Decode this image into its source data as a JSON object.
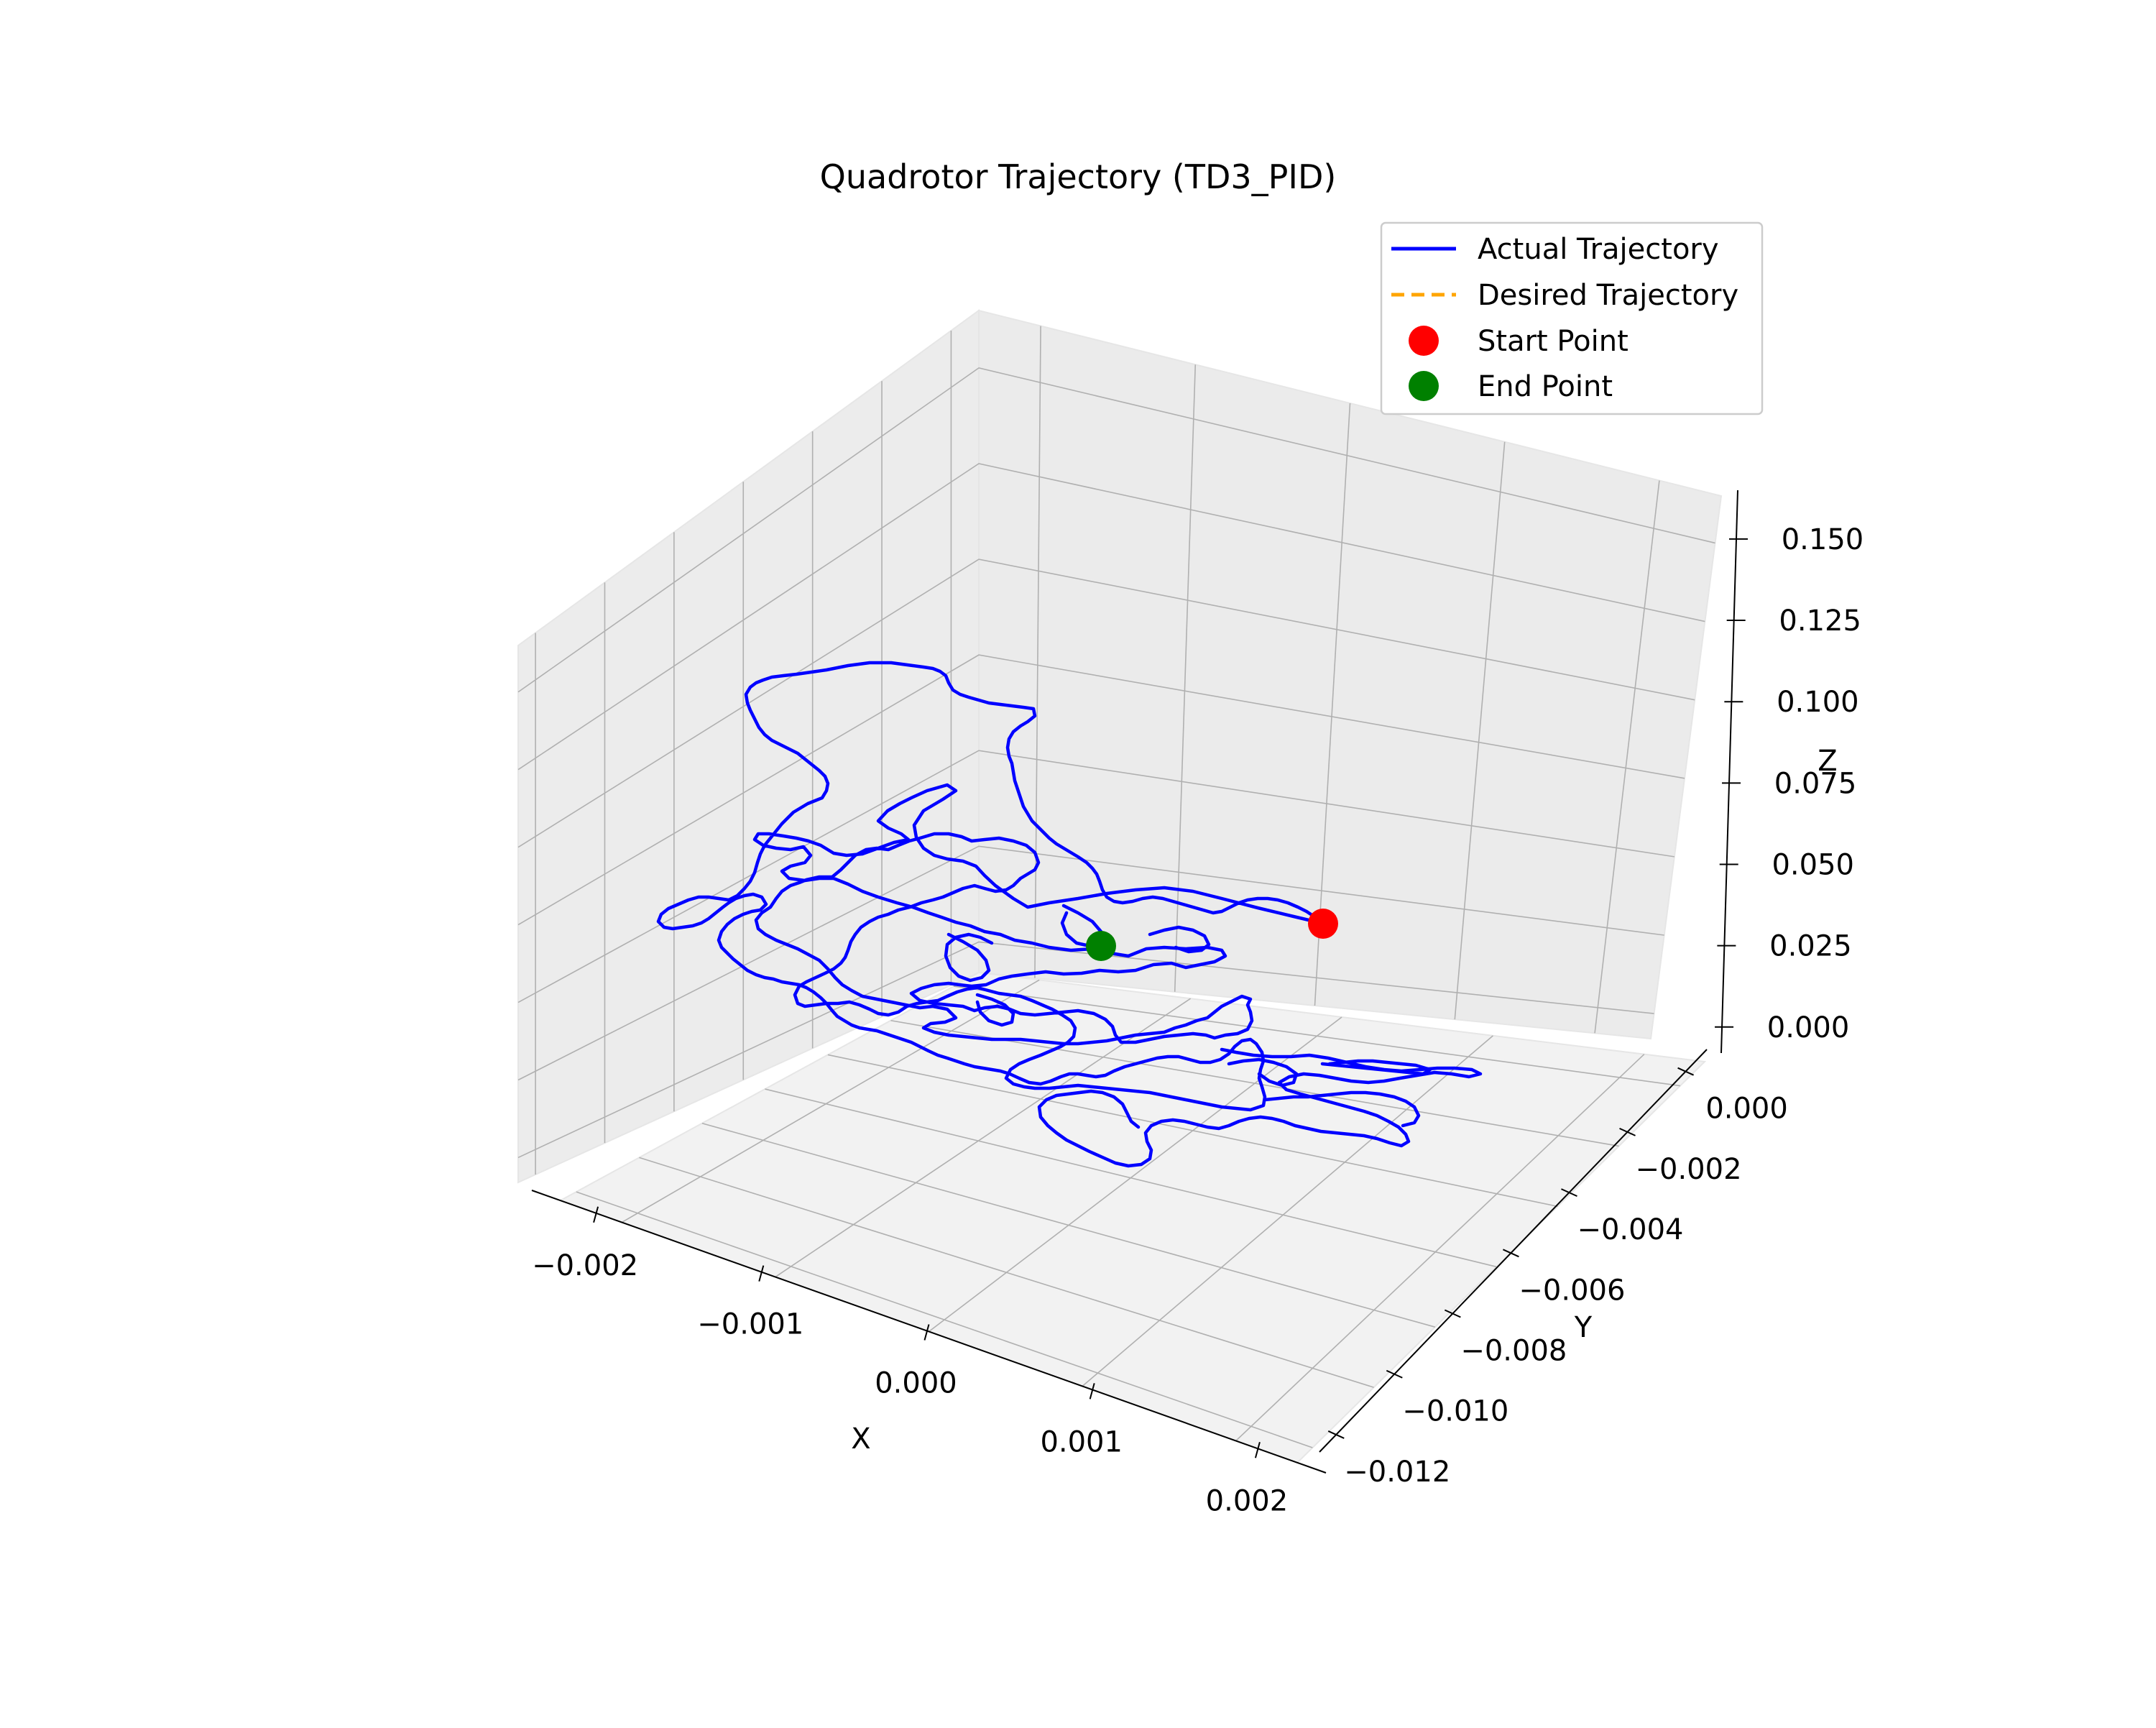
{
  "chart_data": {
    "type": "line3d",
    "title": "Quadrotor Trajectory (TD3_PID)",
    "xlabel": "X",
    "ylabel": "Y",
    "zlabel": "Z",
    "xlim": [
      -0.0024,
      0.0024
    ],
    "ylim": [
      -0.0125,
      0.0008
    ],
    "zlim": [
      -0.008,
      0.165
    ],
    "x_ticks": [
      -0.002,
      -0.001,
      0.0,
      0.001,
      0.002
    ],
    "x_tick_labels": [
      "−0.002",
      "−0.001",
      "0.000",
      "0.001",
      "0.002"
    ],
    "y_ticks": [
      -0.012,
      -0.01,
      -0.008,
      -0.006,
      -0.004,
      -0.002,
      0.0
    ],
    "y_tick_labels": [
      "−0.012",
      "−0.010",
      "−0.008",
      "−0.006",
      "−0.004",
      "−0.002",
      "0.000"
    ],
    "z_ticks": [
      0.0,
      0.025,
      0.05,
      0.075,
      0.1,
      0.125,
      0.15
    ],
    "z_tick_labels": [
      "0.000",
      "0.025",
      "0.050",
      "0.075",
      "0.100",
      "0.125",
      "0.150"
    ],
    "grid": true,
    "legend_position": "top-right",
    "series": [
      {
        "name": "Actual Trajectory",
        "style": "solid",
        "color": "#0000ff"
      },
      {
        "name": "Desired Trajectory",
        "style": "dashed",
        "color": "#ffa500",
        "points": []
      },
      {
        "name": "Start Point",
        "marker": "circle",
        "color": "#ff0000",
        "point": {
          "x": 0.0002,
          "y": 0.0,
          "z": 0.0
        }
      },
      {
        "name": "End Point",
        "marker": "circle",
        "color": "#008000",
        "point": {
          "x": -0.0004,
          "y": -0.0026,
          "z": 0.0
        }
      }
    ]
  }
}
